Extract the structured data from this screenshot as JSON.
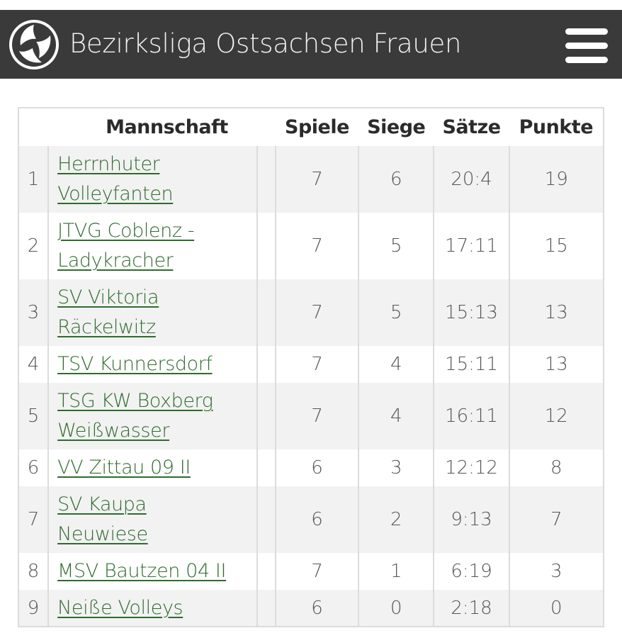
{
  "header": {
    "title": "Bezirksliga Ostsachsen Frauen",
    "logo_icon": "volleyball-icon",
    "menu_icon": "hamburger-menu-icon",
    "background_color": "#3a3a3a"
  },
  "table": {
    "columns": {
      "rank": "",
      "team": "Mannschaft",
      "games": "Spiele",
      "wins": "Siege",
      "sets": "Sätze",
      "points": "Punkte"
    },
    "link_color": "#2f6b2f",
    "rows": [
      {
        "rank": "1",
        "team_line1": "Herrnhuter",
        "team_line2": "Volleyfanten",
        "games": "7",
        "wins": "6",
        "sets": "20:4",
        "points": "19"
      },
      {
        "rank": "2",
        "team_line1": "JTVG Coblenz -",
        "team_line2": "Ladykracher",
        "games": "7",
        "wins": "5",
        "sets": "17:11",
        "points": "15"
      },
      {
        "rank": "3",
        "team_line1": "SV Viktoria",
        "team_line2": "Räckelwitz",
        "games": "7",
        "wins": "5",
        "sets": "15:13",
        "points": "13"
      },
      {
        "rank": "4",
        "team_line1": "TSV Kunnersdorf",
        "team_line2": "",
        "games": "7",
        "wins": "4",
        "sets": "15:11",
        "points": "13"
      },
      {
        "rank": "5",
        "team_line1": "TSG KW Boxberg",
        "team_line2": "Weißwasser",
        "games": "7",
        "wins": "4",
        "sets": "16:11",
        "points": "12"
      },
      {
        "rank": "6",
        "team_line1": "VV Zittau 09 II",
        "team_line2": "",
        "games": "6",
        "wins": "3",
        "sets": "12:12",
        "points": "8"
      },
      {
        "rank": "7",
        "team_line1": "SV Kaupa",
        "team_line2": "Neuwiese",
        "games": "6",
        "wins": "2",
        "sets": "9:13",
        "points": "7"
      },
      {
        "rank": "8",
        "team_line1": "MSV Bautzen 04 II",
        "team_line2": "",
        "games": "7",
        "wins": "1",
        "sets": "6:19",
        "points": "3"
      },
      {
        "rank": "9",
        "team_line1": "Neiße Volleys",
        "team_line2": "",
        "games": "6",
        "wins": "0",
        "sets": "2:18",
        "points": "0"
      }
    ]
  }
}
